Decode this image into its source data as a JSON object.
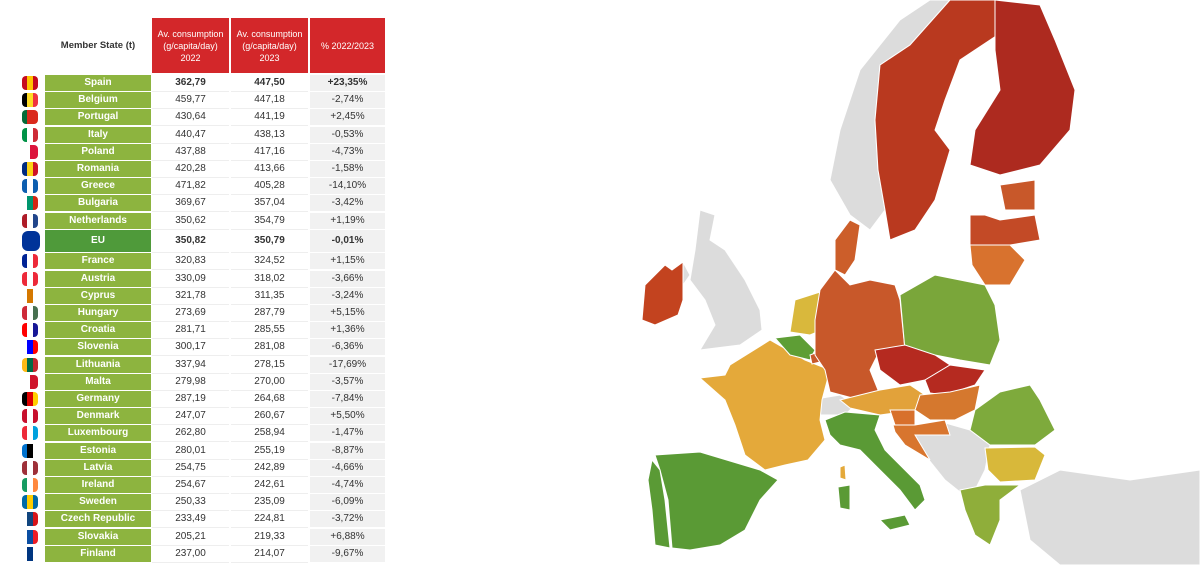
{
  "chart_data": {
    "type": "table",
    "headers": {
      "member_state": "Member State (t)",
      "col2022": [
        "Av. consumption",
        "(g/capita/day)",
        "2022"
      ],
      "col2023": [
        "Av. consumption",
        "(g/capita/day)",
        "2023"
      ],
      "pct": "% 2022/2023"
    },
    "rows": [
      {
        "country": "Spain",
        "v2022": "362,79",
        "v2023": "447,50",
        "pct": "+23,35%",
        "flag": [
          "#c60b1e",
          "#ffc400",
          "#c60b1e"
        ],
        "map_color": "#5a9a35"
      },
      {
        "country": "Belgium",
        "v2022": "459,77",
        "v2023": "447,18",
        "pct": "-2,74%",
        "flag": [
          "#000",
          "#fdda24",
          "#ef3340"
        ],
        "map_color": "#5e9e35"
      },
      {
        "country": "Portugal",
        "v2022": "430,64",
        "v2023": "441,19",
        "pct": "+2,45%",
        "flag": [
          "#046a38",
          "#da291c",
          "#da291c"
        ],
        "map_color": "#5a9a35"
      },
      {
        "country": "Italy",
        "v2022": "440,47",
        "v2023": "438,13",
        "pct": "-0,53%",
        "flag": [
          "#009246",
          "#fff",
          "#ce2b37"
        ],
        "map_color": "#5a9a35"
      },
      {
        "country": "Poland",
        "v2022": "437,88",
        "v2023": "417,16",
        "pct": "-4,73%",
        "flag": [
          "#fff",
          "#dc143c"
        ],
        "map_color": "#7aa63a"
      },
      {
        "country": "Romania",
        "v2022": "420,28",
        "v2023": "413,66",
        "pct": "-1,58%",
        "flag": [
          "#002b7f",
          "#fcd116",
          "#ce1126"
        ],
        "map_color": "#7eaa3c"
      },
      {
        "country": "Greece",
        "v2022": "471,82",
        "v2023": "405,28",
        "pct": "-14,10%",
        "flag": [
          "#0d5eaf",
          "#fff",
          "#0d5eaf"
        ],
        "map_color": "#8fae3a"
      },
      {
        "country": "Bulgaria",
        "v2022": "369,67",
        "v2023": "357,04",
        "pct": "-3,42%",
        "flag": [
          "#fff",
          "#00966e",
          "#d62612"
        ],
        "map_color": "#d8b83a"
      },
      {
        "country": "Netherlands",
        "v2022": "350,62",
        "v2023": "354,79",
        "pct": "+1,19%",
        "flag": [
          "#ae1c28",
          "#fff",
          "#21468b"
        ],
        "map_color": "#d9b83c"
      },
      {
        "country": "EU",
        "v2022": "350,82",
        "v2023": "350,79",
        "pct": "-0,01%",
        "flag": [
          "#003399"
        ],
        "eu": true
      },
      {
        "country": "France",
        "v2022": "320,83",
        "v2023": "324,52",
        "pct": "+1,15%",
        "flag": [
          "#002395",
          "#fff",
          "#ed2939"
        ],
        "map_color": "#e4a93a"
      },
      {
        "country": "Austria",
        "v2022": "330,09",
        "v2023": "318,02",
        "pct": "-3,66%",
        "flag": [
          "#ed2939",
          "#fff",
          "#ed2939"
        ],
        "map_color": "#e2a23a"
      },
      {
        "country": "Cyprus",
        "v2022": "321,78",
        "v2023": "311,35",
        "pct": "-3,24%",
        "flag": [
          "#fff",
          "#d57800",
          "#fff"
        ],
        "map_color": "#e2a23a"
      },
      {
        "country": "Hungary",
        "v2022": "273,69",
        "v2023": "287,79",
        "pct": "+5,15%",
        "flag": [
          "#ce2939",
          "#fff",
          "#477050"
        ],
        "map_color": "#d5782e"
      },
      {
        "country": "Croatia",
        "v2022": "281,71",
        "v2023": "285,55",
        "pct": "+1,36%",
        "flag": [
          "#ff0000",
          "#fff",
          "#171796"
        ],
        "map_color": "#d8752e"
      },
      {
        "country": "Slovenia",
        "v2022": "300,17",
        "v2023": "281,08",
        "pct": "-6,36%",
        "flag": [
          "#fff",
          "#0000ff",
          "#ff0000"
        ],
        "map_color": "#d8702c"
      },
      {
        "country": "Lithuania",
        "v2022": "337,94",
        "v2023": "278,15",
        "pct": "-17,69%",
        "flag": [
          "#fdb913",
          "#006a44",
          "#c1272d"
        ],
        "map_color": "#d8722e"
      },
      {
        "country": "Malta",
        "v2022": "279,98",
        "v2023": "270,00",
        "pct": "-3,57%",
        "flag": [
          "#fff",
          "#cf142b"
        ],
        "map_color": "#d8722e"
      },
      {
        "country": "Germany",
        "v2022": "287,19",
        "v2023": "264,68",
        "pct": "-7,84%",
        "flag": [
          "#000",
          "#dd0000",
          "#ffce00"
        ],
        "map_color": "#c8582a"
      },
      {
        "country": "Denmark",
        "v2022": "247,07",
        "v2023": "260,67",
        "pct": "+5,50%",
        "flag": [
          "#c8102e",
          "#fff",
          "#c8102e"
        ],
        "map_color": "#cc5e2a"
      },
      {
        "country": "Luxembourg",
        "v2022": "262,80",
        "v2023": "258,94",
        "pct": "-1,47%",
        "flag": [
          "#ed2939",
          "#fff",
          "#00a1de"
        ],
        "map_color": "#c8582a"
      },
      {
        "country": "Estonia",
        "v2022": "280,01",
        "v2023": "255,19",
        "pct": "-8,87%",
        "flag": [
          "#0072ce",
          "#000",
          "#fff"
        ],
        "map_color": "#c8582a"
      },
      {
        "country": "Latvia",
        "v2022": "254,75",
        "v2023": "242,89",
        "pct": "-4,66%",
        "flag": [
          "#9e3039",
          "#fff",
          "#9e3039"
        ],
        "map_color": "#c34a26"
      },
      {
        "country": "Ireland",
        "v2022": "254,67",
        "v2023": "242,61",
        "pct": "-4,74%",
        "flag": [
          "#169b62",
          "#fff",
          "#ff883e"
        ],
        "map_color": "#c3431f"
      },
      {
        "country": "Sweden",
        "v2022": "250,33",
        "v2023": "235,09",
        "pct": "-6,09%",
        "flag": [
          "#006aa7",
          "#fecc00",
          "#006aa7"
        ],
        "map_color": "#b9391f"
      },
      {
        "country": "Czech Republic",
        "v2022": "233,49",
        "v2023": "224,81",
        "pct": "-3,72%",
        "flag": [
          "#fff",
          "#11457e",
          "#d7141a"
        ],
        "map_color": "#b52a20"
      },
      {
        "country": "Slovakia",
        "v2022": "205,21",
        "v2023": "219,33",
        "pct": "+6,88%",
        "flag": [
          "#fff",
          "#0b4ea2",
          "#ee1c25"
        ],
        "map_color": "#b52a20"
      },
      {
        "country": "Finland",
        "v2022": "237,00",
        "v2023": "214,07",
        "pct": "-9,67%",
        "flag": [
          "#fff",
          "#003580",
          "#fff"
        ],
        "map_color": "#ad2a1f"
      }
    ],
    "non_eu_color": "#dcdcdc"
  }
}
